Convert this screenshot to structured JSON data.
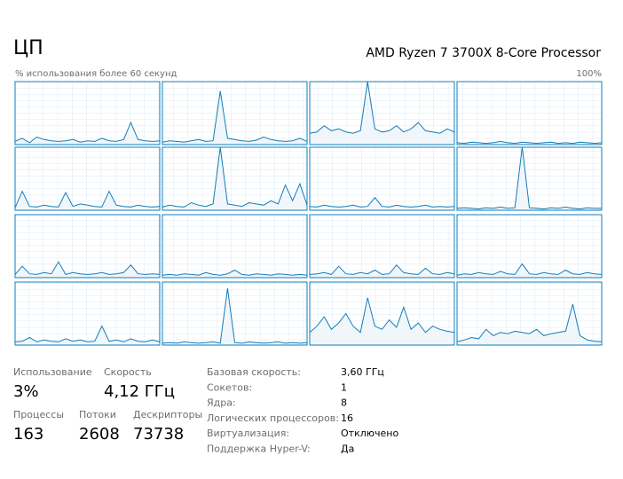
{
  "header": {
    "title": "ЦП",
    "processor": "AMD Ryzen 7 3700X 8-Core Processor"
  },
  "graph": {
    "caption": "% использования более 60 секунд",
    "ymax": {
      "value": 100,
      "label": "100%"
    },
    "cores": [
      [
        5,
        10,
        3,
        12,
        8,
        6,
        5,
        6,
        8,
        4,
        6,
        5,
        10,
        6,
        5,
        8,
        35,
        8,
        6,
        5,
        6
      ],
      [
        4,
        6,
        5,
        4,
        6,
        8,
        5,
        6,
        85,
        10,
        8,
        6,
        5,
        7,
        12,
        8,
        6,
        5,
        6,
        10,
        5
      ],
      [
        18,
        20,
        30,
        22,
        25,
        20,
        18,
        22,
        100,
        25,
        20,
        22,
        30,
        20,
        25,
        35,
        22,
        20,
        18,
        25,
        20
      ],
      [
        3,
        2,
        4,
        3,
        2,
        3,
        5,
        3,
        2,
        4,
        3,
        2,
        3,
        4,
        2,
        3,
        2,
        4,
        3,
        2,
        3
      ],
      [
        4,
        30,
        6,
        5,
        8,
        6,
        5,
        28,
        6,
        10,
        8,
        6,
        5,
        30,
        8,
        6,
        5,
        8,
        6,
        5,
        6
      ],
      [
        5,
        8,
        6,
        5,
        12,
        8,
        6,
        10,
        100,
        10,
        8,
        6,
        12,
        10,
        8,
        15,
        10,
        40,
        15,
        42,
        8
      ],
      [
        6,
        5,
        8,
        6,
        5,
        6,
        8,
        5,
        6,
        20,
        6,
        5,
        8,
        6,
        5,
        6,
        8,
        5,
        6,
        5,
        6
      ],
      [
        3,
        4,
        3,
        2,
        4,
        3,
        5,
        3,
        4,
        100,
        4,
        3,
        2,
        4,
        3,
        5,
        3,
        2,
        4,
        3,
        3
      ],
      [
        5,
        18,
        6,
        5,
        8,
        6,
        25,
        5,
        8,
        6,
        5,
        6,
        8,
        5,
        6,
        8,
        20,
        6,
        5,
        6,
        5
      ],
      [
        4,
        5,
        4,
        6,
        5,
        4,
        8,
        5,
        4,
        6,
        12,
        5,
        4,
        6,
        5,
        4,
        6,
        5,
        4,
        5,
        4
      ],
      [
        5,
        6,
        8,
        5,
        18,
        6,
        5,
        8,
        6,
        12,
        5,
        6,
        20,
        8,
        6,
        5,
        15,
        6,
        5,
        8,
        6
      ],
      [
        4,
        6,
        5,
        8,
        6,
        5,
        10,
        6,
        5,
        22,
        6,
        5,
        8,
        6,
        5,
        12,
        6,
        5,
        8,
        6,
        5
      ],
      [
        5,
        6,
        12,
        5,
        8,
        6,
        5,
        10,
        6,
        8,
        5,
        6,
        30,
        6,
        8,
        5,
        10,
        6,
        5,
        8,
        5
      ],
      [
        3,
        4,
        3,
        5,
        4,
        3,
        4,
        5,
        3,
        90,
        4,
        3,
        5,
        4,
        3,
        4,
        5,
        3,
        4,
        3,
        4
      ],
      [
        20,
        30,
        45,
        25,
        35,
        50,
        30,
        20,
        75,
        30,
        25,
        40,
        28,
        60,
        25,
        35,
        20,
        30,
        25,
        22,
        20
      ],
      [
        5,
        8,
        12,
        10,
        25,
        15,
        20,
        18,
        22,
        20,
        18,
        25,
        15,
        18,
        20,
        22,
        65,
        15,
        8,
        6,
        5
      ]
    ]
  },
  "stats": [
    {
      "label": "Использование",
      "value": "3%"
    },
    {
      "label": "Скорость",
      "value": "4,12 ГГц"
    },
    {
      "label": "Процессы",
      "value": "163"
    },
    {
      "label": "Потоки",
      "value": "2608"
    },
    {
      "label": "Дескрипторы",
      "value": "73738"
    }
  ],
  "details": [
    {
      "label": "Базовая скорость:",
      "value": "3,60 ГГц"
    },
    {
      "label": "Сокетов:",
      "value": "1"
    },
    {
      "label": "Ядра:",
      "value": "8"
    },
    {
      "label": "Логических процессоров:",
      "value": "16"
    },
    {
      "label": "Виртуализация:",
      "value": "Отключено"
    },
    {
      "label": "Поддержка Hyper-V:",
      "value": "Да"
    }
  ]
}
